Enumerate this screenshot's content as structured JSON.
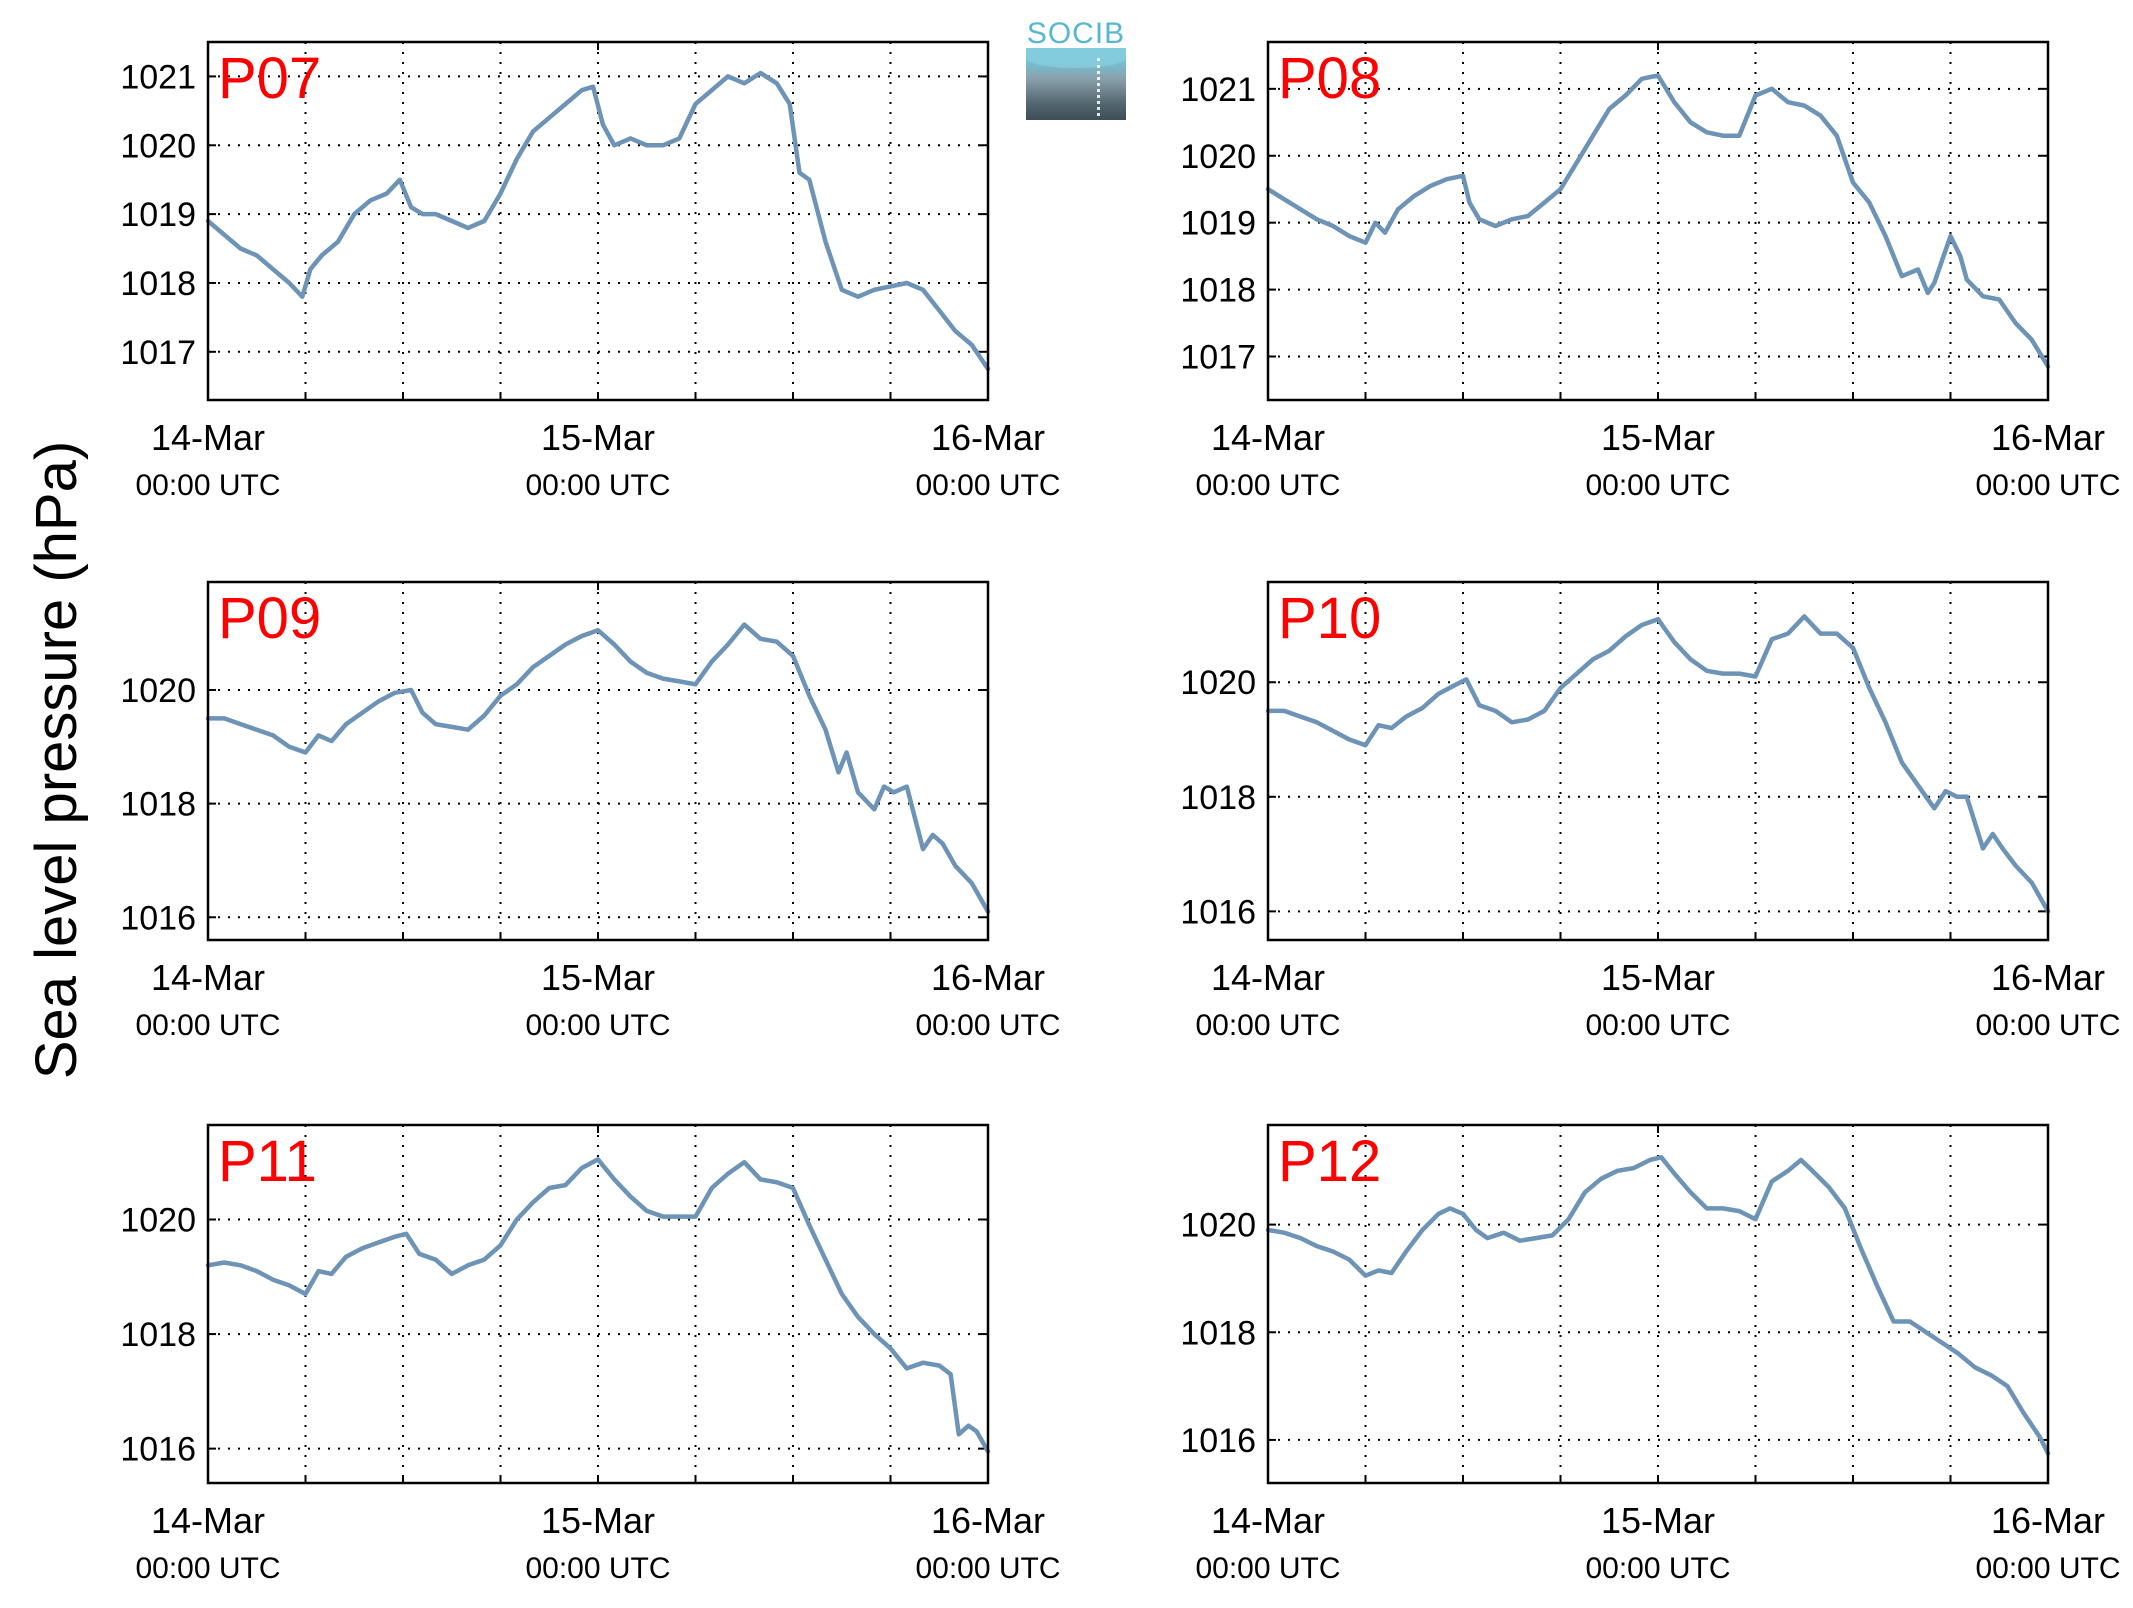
{
  "figure": {
    "ylabel": "Sea level pressure (hPa)",
    "logo_text": "SOCIB",
    "colors": {
      "line": "#6d93b6",
      "panel_label": "#ff0000",
      "grid": "#000000",
      "axis": "#000000"
    }
  },
  "chart_data": [
    {
      "type": "line",
      "panel_label": "P07",
      "x_unit": "hours since 14-Mar 00:00 UTC",
      "xlim": [
        0,
        48
      ],
      "xticks": [
        0,
        24,
        48
      ],
      "xtick_labels": [
        [
          "14-Mar",
          "00:00 UTC"
        ],
        [
          "15-Mar",
          "00:00 UTC"
        ],
        [
          "16-Mar",
          "00:00 UTC"
        ]
      ],
      "xgrid": [
        6,
        12,
        18,
        24,
        30,
        36,
        42
      ],
      "ylim": [
        1016.3,
        1021.5
      ],
      "yticks": [
        1017,
        1018,
        1019,
        1020,
        1021
      ],
      "grid": true,
      "series": [
        {
          "x": [
            0,
            1,
            2,
            3,
            4,
            5,
            5.8,
            6.3,
            7,
            8,
            9,
            10,
            11,
            11.8,
            12.5,
            13.2,
            14,
            15,
            16,
            17,
            18,
            19,
            20,
            21,
            22,
            23,
            23.7,
            24.3,
            25,
            26,
            27,
            28,
            29,
            30,
            31,
            32,
            33,
            34,
            35,
            35.8,
            36.4,
            37,
            38,
            39,
            40,
            41,
            42,
            43,
            44,
            45,
            46,
            47,
            48
          ],
          "y": [
            1018.9,
            1018.7,
            1018.5,
            1018.4,
            1018.2,
            1018.0,
            1017.8,
            1018.2,
            1018.4,
            1018.6,
            1019.0,
            1019.2,
            1019.3,
            1019.5,
            1019.1,
            1019.0,
            1019.0,
            1018.9,
            1018.8,
            1018.9,
            1019.3,
            1019.8,
            1020.2,
            1020.4,
            1020.6,
            1020.8,
            1020.85,
            1020.3,
            1020.0,
            1020.1,
            1020.0,
            1020.0,
            1020.1,
            1020.6,
            1020.8,
            1021.0,
            1020.9,
            1021.05,
            1020.9,
            1020.6,
            1019.6,
            1019.5,
            1018.6,
            1017.9,
            1017.8,
            1017.9,
            1017.95,
            1018.0,
            1017.9,
            1017.6,
            1017.3,
            1017.1,
            1016.75
          ]
        }
      ]
    },
    {
      "type": "line",
      "panel_label": "P08",
      "x_unit": "hours since 14-Mar 00:00 UTC",
      "xlim": [
        0,
        48
      ],
      "xticks": [
        0,
        24,
        48
      ],
      "xtick_labels": [
        [
          "14-Mar",
          "00:00 UTC"
        ],
        [
          "15-Mar",
          "00:00 UTC"
        ],
        [
          "16-Mar",
          "00:00 UTC"
        ]
      ],
      "xgrid": [
        6,
        12,
        18,
        24,
        30,
        36,
        42
      ],
      "ylim": [
        1016.35,
        1021.7
      ],
      "yticks": [
        1017,
        1018,
        1019,
        1020,
        1021
      ],
      "grid": true,
      "series": [
        {
          "x": [
            0,
            1,
            2,
            3,
            4,
            5,
            6,
            6.6,
            7.2,
            8,
            9,
            10,
            11,
            12,
            12.4,
            13,
            14,
            15,
            16,
            17,
            18,
            19,
            20,
            21,
            22,
            23,
            24,
            25,
            26,
            27,
            28,
            29,
            30,
            31,
            32,
            33,
            34,
            35,
            36,
            37,
            38,
            39,
            40,
            40.6,
            41,
            42,
            42.6,
            43,
            44,
            45,
            46,
            47,
            48
          ],
          "y": [
            1019.5,
            1019.35,
            1019.2,
            1019.05,
            1018.95,
            1018.8,
            1018.7,
            1019.0,
            1018.85,
            1019.2,
            1019.4,
            1019.55,
            1019.65,
            1019.7,
            1019.3,
            1019.05,
            1018.95,
            1019.05,
            1019.1,
            1019.3,
            1019.5,
            1019.9,
            1020.3,
            1020.7,
            1020.9,
            1021.15,
            1021.2,
            1020.8,
            1020.5,
            1020.35,
            1020.3,
            1020.3,
            1020.9,
            1021.0,
            1020.8,
            1020.75,
            1020.6,
            1020.3,
            1019.6,
            1019.3,
            1018.8,
            1018.2,
            1018.3,
            1017.95,
            1018.1,
            1018.8,
            1018.5,
            1018.15,
            1017.9,
            1017.85,
            1017.5,
            1017.25,
            1016.85
          ]
        }
      ]
    },
    {
      "type": "line",
      "panel_label": "P09",
      "x_unit": "hours since 14-Mar 00:00 UTC",
      "xlim": [
        0,
        48
      ],
      "xticks": [
        0,
        24,
        48
      ],
      "xtick_labels": [
        [
          "14-Mar",
          "00:00 UTC"
        ],
        [
          "15-Mar",
          "00:00 UTC"
        ],
        [
          "16-Mar",
          "00:00 UTC"
        ]
      ],
      "xgrid": [
        6,
        12,
        18,
        24,
        30,
        36,
        42
      ],
      "ylim": [
        1015.6,
        1021.9
      ],
      "yticks": [
        1016,
        1018,
        1020
      ],
      "grid": true,
      "series": [
        {
          "x": [
            0,
            1,
            2,
            3,
            4,
            5,
            6,
            6.8,
            7.6,
            8.5,
            9.5,
            10.5,
            11.5,
            12.5,
            13.2,
            14,
            15,
            16,
            17,
            18,
            19,
            20,
            21,
            22,
            23,
            24,
            25,
            26,
            27,
            28,
            29,
            30,
            31,
            32,
            33,
            34,
            35,
            36,
            37,
            38,
            38.8,
            39.3,
            40,
            41,
            41.6,
            42.2,
            43,
            44,
            44.6,
            45.2,
            46,
            47,
            48
          ],
          "y": [
            1019.5,
            1019.5,
            1019.4,
            1019.3,
            1019.2,
            1019.0,
            1018.9,
            1019.2,
            1019.1,
            1019.4,
            1019.6,
            1019.8,
            1019.95,
            1020.0,
            1019.6,
            1019.4,
            1019.35,
            1019.3,
            1019.55,
            1019.9,
            1020.1,
            1020.4,
            1020.6,
            1020.8,
            1020.95,
            1021.05,
            1020.8,
            1020.5,
            1020.3,
            1020.2,
            1020.15,
            1020.1,
            1020.5,
            1020.8,
            1021.15,
            1020.9,
            1020.85,
            1020.6,
            1019.9,
            1019.3,
            1018.55,
            1018.9,
            1018.2,
            1017.9,
            1018.3,
            1018.2,
            1018.3,
            1017.2,
            1017.45,
            1017.3,
            1016.9,
            1016.6,
            1016.1
          ]
        }
      ]
    },
    {
      "type": "line",
      "panel_label": "P10",
      "x_unit": "hours since 14-Mar 00:00 UTC",
      "xlim": [
        0,
        48
      ],
      "xticks": [
        0,
        24,
        48
      ],
      "xtick_labels": [
        [
          "14-Mar",
          "00:00 UTC"
        ],
        [
          "15-Mar",
          "00:00 UTC"
        ],
        [
          "16-Mar",
          "00:00 UTC"
        ]
      ],
      "xgrid": [
        6,
        12,
        18,
        24,
        30,
        36,
        42
      ],
      "ylim": [
        1015.5,
        1021.75
      ],
      "yticks": [
        1016,
        1018,
        1020
      ],
      "grid": true,
      "series": [
        {
          "x": [
            0,
            1,
            2,
            3,
            4,
            5,
            6,
            6.8,
            7.6,
            8.5,
            9.5,
            10.5,
            11.5,
            12.2,
            13,
            14,
            15,
            16,
            17,
            18,
            19,
            20,
            21,
            22,
            23,
            24,
            25,
            26,
            27,
            28,
            29,
            30,
            31,
            32,
            33,
            34,
            35,
            36,
            37,
            38,
            39,
            40,
            41,
            41.7,
            42.4,
            43,
            44,
            44.6,
            45.2,
            46,
            47,
            48
          ],
          "y": [
            1019.5,
            1019.5,
            1019.4,
            1019.3,
            1019.15,
            1019.0,
            1018.9,
            1019.25,
            1019.2,
            1019.4,
            1019.55,
            1019.8,
            1019.95,
            1020.05,
            1019.6,
            1019.5,
            1019.3,
            1019.35,
            1019.5,
            1019.9,
            1020.15,
            1020.4,
            1020.55,
            1020.8,
            1021.0,
            1021.1,
            1020.7,
            1020.4,
            1020.2,
            1020.15,
            1020.15,
            1020.1,
            1020.75,
            1020.85,
            1021.15,
            1020.85,
            1020.85,
            1020.6,
            1019.9,
            1019.3,
            1018.6,
            1018.2,
            1017.8,
            1018.1,
            1018.0,
            1018.0,
            1017.1,
            1017.35,
            1017.1,
            1016.8,
            1016.5,
            1016.0
          ]
        }
      ]
    },
    {
      "type": "line",
      "panel_label": "P11",
      "x_unit": "hours since 14-Mar 00:00 UTC",
      "xlim": [
        0,
        48
      ],
      "xticks": [
        0,
        24,
        48
      ],
      "xtick_labels": [
        [
          "14-Mar",
          "00:00 UTC"
        ],
        [
          "15-Mar",
          "00:00 UTC"
        ],
        [
          "16-Mar",
          "00:00 UTC"
        ]
      ],
      "xgrid": [
        6,
        12,
        18,
        24,
        30,
        36,
        42
      ],
      "ylim": [
        1015.4,
        1021.65
      ],
      "yticks": [
        1016,
        1018,
        1020
      ],
      "grid": true,
      "series": [
        {
          "x": [
            0,
            1,
            2,
            3,
            4,
            5,
            6,
            6.8,
            7.6,
            8.5,
            9.5,
            10.5,
            11.5,
            12.2,
            13,
            14,
            15,
            16,
            17,
            18,
            19,
            20,
            21,
            22,
            23,
            24,
            25,
            26,
            27,
            28,
            29,
            30,
            31,
            32,
            33,
            34,
            35,
            36,
            37,
            38,
            39,
            40,
            41,
            42,
            43,
            44,
            45,
            45.7,
            46.2,
            46.8,
            47.3,
            48
          ],
          "y": [
            1019.2,
            1019.25,
            1019.2,
            1019.1,
            1018.95,
            1018.85,
            1018.7,
            1019.1,
            1019.05,
            1019.35,
            1019.5,
            1019.6,
            1019.7,
            1019.75,
            1019.4,
            1019.3,
            1019.05,
            1019.2,
            1019.3,
            1019.55,
            1020.0,
            1020.3,
            1020.55,
            1020.6,
            1020.9,
            1021.05,
            1020.7,
            1020.4,
            1020.15,
            1020.05,
            1020.05,
            1020.05,
            1020.55,
            1020.8,
            1021.0,
            1020.7,
            1020.65,
            1020.55,
            1019.9,
            1019.3,
            1018.7,
            1018.3,
            1018.0,
            1017.75,
            1017.4,
            1017.5,
            1017.45,
            1017.3,
            1016.25,
            1016.4,
            1016.3,
            1015.95
          ]
        }
      ]
    },
    {
      "type": "line",
      "panel_label": "P12",
      "x_unit": "hours since 14-Mar 00:00 UTC",
      "xlim": [
        0,
        48
      ],
      "xticks": [
        0,
        24,
        48
      ],
      "xtick_labels": [
        [
          "14-Mar",
          "00:00 UTC"
        ],
        [
          "15-Mar",
          "00:00 UTC"
        ],
        [
          "16-Mar",
          "00:00 UTC"
        ]
      ],
      "xgrid": [
        6,
        12,
        18,
        24,
        30,
        36,
        42
      ],
      "ylim": [
        1015.2,
        1021.85
      ],
      "yticks": [
        1016,
        1018,
        1020
      ],
      "grid": true,
      "series": [
        {
          "x": [
            0,
            1,
            2,
            3,
            4,
            5,
            6,
            6.8,
            7.6,
            8.5,
            9.5,
            10.5,
            11.2,
            12,
            12.8,
            13.5,
            14.5,
            15.5,
            16.5,
            17.5,
            18.5,
            19.5,
            20.5,
            21.5,
            22.5,
            23.5,
            24.2,
            25,
            26,
            27,
            28,
            29,
            30,
            31,
            32,
            32.8,
            33.5,
            34.5,
            35.5,
            36.5,
            37.5,
            38.5,
            39.5,
            40.5,
            41.5,
            42.5,
            43.5,
            44.5,
            45.5,
            46.5,
            47.5,
            48
          ],
          "y": [
            1019.9,
            1019.85,
            1019.75,
            1019.6,
            1019.5,
            1019.35,
            1019.05,
            1019.15,
            1019.1,
            1019.5,
            1019.9,
            1020.2,
            1020.3,
            1020.2,
            1019.9,
            1019.75,
            1019.85,
            1019.7,
            1019.75,
            1019.8,
            1020.1,
            1020.6,
            1020.85,
            1021.0,
            1021.05,
            1021.2,
            1021.25,
            1020.95,
            1020.6,
            1020.3,
            1020.3,
            1020.25,
            1020.1,
            1020.8,
            1021.0,
            1021.2,
            1021.0,
            1020.7,
            1020.3,
            1019.55,
            1018.85,
            1018.2,
            1018.2,
            1018.0,
            1017.8,
            1017.6,
            1017.35,
            1017.2,
            1017.0,
            1016.5,
            1016.05,
            1015.75
          ]
        }
      ]
    }
  ]
}
